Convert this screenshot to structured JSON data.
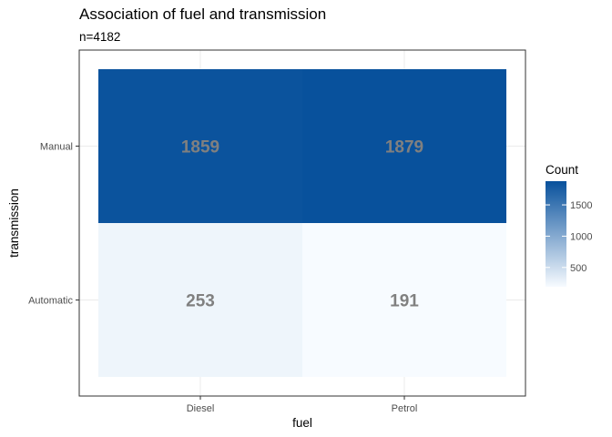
{
  "chart_data": {
    "type": "heatmap",
    "title": "Association of fuel and transmission",
    "subtitle": "n=4182",
    "xlabel": "fuel",
    "ylabel": "transmission",
    "x_categories": [
      "Diesel",
      "Petrol"
    ],
    "y_categories": [
      "Manual",
      "Automatic"
    ],
    "values": [
      [
        1859,
        1879
      ],
      [
        253,
        191
      ]
    ],
    "grid": true,
    "legend": {
      "title": "Count",
      "position": "right",
      "ticks": [
        500,
        1000,
        1500
      ],
      "min": 191,
      "max": 1879,
      "low_color": "#f7fbff",
      "high_color": "#08519c"
    }
  }
}
